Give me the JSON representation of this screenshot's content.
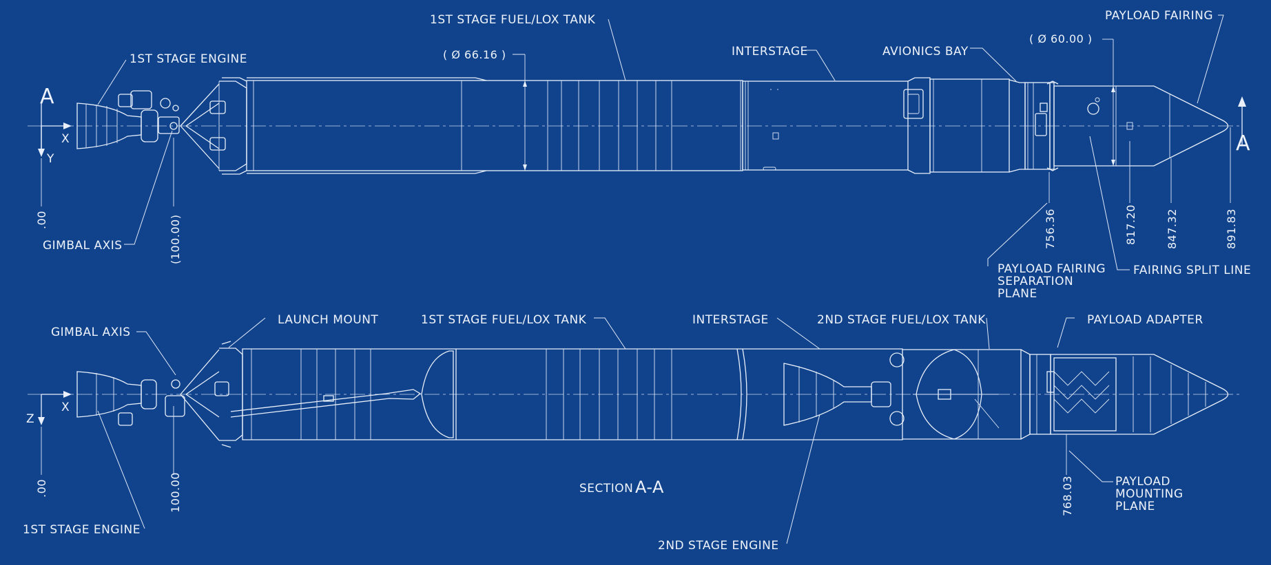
{
  "top_view": {
    "view_letter_left": "A",
    "view_letter_right": "A",
    "axis_x": "X",
    "axis_y": "Y",
    "labels": {
      "first_stage_engine": "1ST STAGE ENGINE",
      "first_stage_tank": "1ST STAGE FUEL/LOX TANK",
      "interstage": "INTERSTAGE",
      "avionics_bay": "AVIONICS BAY",
      "payload_fairing": "PAYLOAD FAIRING",
      "gimbal_axis": "GIMBAL AXIS",
      "fairing_sep_1": "PAYLOAD FAIRING",
      "fairing_sep_2": "SEPARATION",
      "fairing_sep_3": "PLANE",
      "fairing_split": "FAIRING SPLIT LINE"
    },
    "diameters": {
      "tank": "( Ø 66.16 )",
      "fairing": "( Ø 60.00 )"
    },
    "dimensions": {
      "origin": ".00",
      "gimbal": "(100.00)",
      "sep_plane": "756.36",
      "d1": "817.20",
      "d2": "847.32",
      "tip": "891.83"
    }
  },
  "section_view": {
    "title_prefix": "SECTION",
    "title_letters": "A-A",
    "axis_x": "X",
    "axis_z": "Z",
    "labels": {
      "gimbal_axis": "GIMBAL AXIS",
      "launch_mount": "LAUNCH MOUNT",
      "first_stage_tank": "1ST STAGE FUEL/LOX TANK",
      "interstage": "INTERSTAGE",
      "second_stage_tank": "2ND STAGE FUEL/LOX TANK",
      "payload_adapter": "PAYLOAD ADAPTER",
      "first_stage_engine": "1ST STAGE ENGINE",
      "second_stage_engine": "2ND STAGE ENGINE",
      "payload_mount_1": "PAYLOAD",
      "payload_mount_2": "MOUNTING",
      "payload_mount_3": "PLANE"
    },
    "dimensions": {
      "origin": ".00",
      "gimbal": "100.00",
      "mount_plane": "768.03"
    }
  },
  "colors": {
    "background": "#11438c",
    "linework": "#e9f0fb"
  }
}
